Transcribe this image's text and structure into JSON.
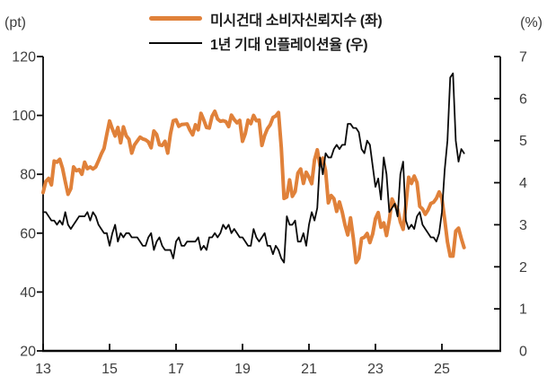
{
  "legend": {
    "items": [
      {
        "label": "미시건대 소비자신뢰지수 (좌)",
        "color": "#E0813A",
        "style": "thick"
      },
      {
        "label": "1년 기대 인플레이션율 (우)",
        "color": "#0a0a0a",
        "style": "thin"
      }
    ]
  },
  "chart_data": {
    "type": "line",
    "x_frequency": "monthly",
    "x_start": "2013-01",
    "x_end": "2025-09",
    "x_axis": {
      "tick_years": [
        2013,
        2015,
        2017,
        2019,
        2021,
        2023,
        2025
      ],
      "tick_labels": [
        "13",
        "15",
        "17",
        "19",
        "21",
        "23",
        "25"
      ],
      "range_years": [
        2013,
        2026.8
      ],
      "grid": false
    },
    "left_axis": {
      "unit_label": "(pt)",
      "min": 20,
      "max": 120,
      "tick_values": [
        120,
        100,
        80,
        60,
        40,
        20
      ]
    },
    "right_axis": {
      "unit_label": "(%)",
      "min": 0,
      "max": 7,
      "tick_values": [
        7,
        6,
        5,
        4,
        3,
        2,
        1,
        0
      ]
    },
    "series": [
      {
        "name": "미시건대 소비자신뢰지수 (좌)",
        "axis": "left",
        "color": "#E0813A",
        "stroke_width": 4,
        "values": [
          73.8,
          77.6,
          78.6,
          76.4,
          84.5,
          84.1,
          85.1,
          82.1,
          77.5,
          73.2,
          75.1,
          82.5,
          81.2,
          81.6,
          80.0,
          84.1,
          81.9,
          82.5,
          81.8,
          82.5,
          84.6,
          86.9,
          88.8,
          93.6,
          98.1,
          95.4,
          93.0,
          95.9,
          90.7,
          96.1,
          93.1,
          91.9,
          87.2,
          90.0,
          91.3,
          92.6,
          92.0,
          91.7,
          91.0,
          89.0,
          94.7,
          93.5,
          90.0,
          89.8,
          91.2,
          87.2,
          93.8,
          98.2,
          98.5,
          96.3,
          96.9,
          97.0,
          97.1,
          95.0,
          93.4,
          96.8,
          95.1,
          100.7,
          98.5,
          95.9,
          95.7,
          99.7,
          101.4,
          98.8,
          98.0,
          98.2,
          97.9,
          96.2,
          100.1,
          98.6,
          97.5,
          98.3,
          91.2,
          93.8,
          98.4,
          97.2,
          100.0,
          98.2,
          98.4,
          89.8,
          93.2,
          95.5,
          96.8,
          99.3,
          99.8,
          101.0,
          89.1,
          71.8,
          72.3,
          78.1,
          72.5,
          74.1,
          80.4,
          81.8,
          76.9,
          80.7,
          79.0,
          76.8,
          84.9,
          88.3,
          82.9,
          85.5,
          81.2,
          70.3,
          72.8,
          71.7,
          67.4,
          70.6,
          67.2,
          62.8,
          59.4,
          65.2,
          58.4,
          50.0,
          51.5,
          58.2,
          58.6,
          59.9,
          56.8,
          59.7,
          64.9,
          67.0,
          62.0,
          63.5,
          59.2,
          64.4,
          71.6,
          69.5,
          68.1,
          63.8,
          61.3,
          69.7,
          79.0,
          76.9,
          79.4,
          77.2,
          69.1,
          68.2,
          66.4,
          67.9,
          70.1,
          70.5,
          71.8,
          74.0,
          71.7,
          64.7,
          57.0,
          52.2,
          52.2,
          60.7,
          61.7,
          58.2,
          55.1
        ]
      },
      {
        "name": "1년 기대 인플레이션율 (우)",
        "axis": "right",
        "color": "#0a0a0a",
        "stroke_width": 1.8,
        "values": [
          3.3,
          3.3,
          3.2,
          3.1,
          3.1,
          3.0,
          3.1,
          3.0,
          3.3,
          3.0,
          2.9,
          3.0,
          3.1,
          3.2,
          3.2,
          3.2,
          3.3,
          3.1,
          3.3,
          3.2,
          3.0,
          2.9,
          2.8,
          2.8,
          2.5,
          2.8,
          3.0,
          2.6,
          2.8,
          2.7,
          2.8,
          2.8,
          2.7,
          2.7,
          2.7,
          2.6,
          2.5,
          2.5,
          2.7,
          2.8,
          2.4,
          2.6,
          2.7,
          2.5,
          2.4,
          2.4,
          2.4,
          2.2,
          2.6,
          2.7,
          2.5,
          2.5,
          2.6,
          2.6,
          2.6,
          2.6,
          2.7,
          2.4,
          2.5,
          2.4,
          2.7,
          2.7,
          2.8,
          2.7,
          2.8,
          3.0,
          2.9,
          3.0,
          2.8,
          2.9,
          2.8,
          2.7,
          2.7,
          2.6,
          2.5,
          2.5,
          2.9,
          2.7,
          2.6,
          2.7,
          2.8,
          2.5,
          2.5,
          2.3,
          2.5,
          2.4,
          2.2,
          2.1,
          3.2,
          3.0,
          3.0,
          3.1,
          2.6,
          2.6,
          2.8,
          2.5,
          3.0,
          3.3,
          3.1,
          3.4,
          4.6,
          4.2,
          4.7,
          4.6,
          4.6,
          4.8,
          4.9,
          4.8,
          4.9,
          4.9,
          5.4,
          5.4,
          5.3,
          5.3,
          5.2,
          4.8,
          4.7,
          5.0,
          4.9,
          4.4,
          3.9,
          4.1,
          3.6,
          4.6,
          4.2,
          3.3,
          3.4,
          3.5,
          3.2,
          4.2,
          4.5,
          3.1,
          2.9,
          3.0,
          2.9,
          3.2,
          3.3,
          3.0,
          2.9,
          2.8,
          2.7,
          2.7,
          2.6,
          2.8,
          3.3,
          4.3,
          5.0,
          6.5,
          6.6,
          5.0,
          4.5,
          4.8,
          4.7
        ]
      }
    ]
  }
}
